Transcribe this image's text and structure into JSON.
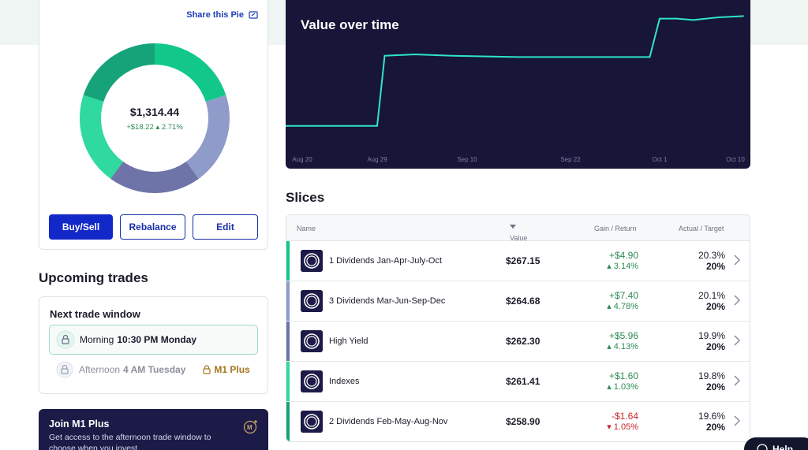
{
  "pie": {
    "share_label": "Share this Pie",
    "total_value": "$1,314.44",
    "change": "+$18.22 ▴ 2.71%",
    "buttons": {
      "buy_sell": "Buy/Sell",
      "rebalance": "Rebalance",
      "edit": "Edit"
    },
    "segment_colors": [
      "#11c88a",
      "#8f9bc8",
      "#6e73a8",
      "#2fd9a0",
      "#17a37a"
    ]
  },
  "upcoming": {
    "title": "Upcoming trades",
    "next_window_title": "Next trade window",
    "morning": {
      "label": "Morning",
      "time": "10:30 PM Monday"
    },
    "afternoon": {
      "label": "Afternoon",
      "time": "4 AM Tuesday",
      "badge": "M1 Plus"
    }
  },
  "join": {
    "title": "Join M1 Plus",
    "description": "Get access to the afternoon trade window to choose when you invest."
  },
  "chart": {
    "title": "Value over time",
    "line_color": "#2ee6c4",
    "background": "#171538"
  },
  "chart_data": {
    "type": "line",
    "title": "Value over time",
    "x_ticks": [
      "Aug 20",
      "Aug 29",
      "Sep 10",
      "Sep 22",
      "Oct 1",
      "Oct 10"
    ],
    "series": [
      {
        "values": [
          [
            "Aug 20",
            0.18
          ],
          [
            "Aug 29",
            0.18
          ],
          [
            "Aug 30",
            0.71
          ],
          [
            "Sep 3",
            0.72
          ],
          [
            "Sep 8",
            0.71
          ],
          [
            "Sep 16",
            0.7
          ],
          [
            "Sep 22",
            0.7
          ],
          [
            "Sep 30",
            0.7
          ],
          [
            "Oct 1",
            0.99
          ],
          [
            "Oct 3",
            0.99
          ],
          [
            "Oct 5",
            0.98
          ],
          [
            "Oct 8",
            1.0
          ],
          [
            "Oct 11",
            1.01
          ]
        ]
      }
    ],
    "grid": false
  },
  "slices": {
    "title": "Slices",
    "columns": {
      "name": "Name",
      "value": "Value",
      "gain": "Gain / Return",
      "target": "Actual / Target"
    },
    "rows": [
      {
        "name": "1 Dividends Jan-Apr-July-Oct",
        "value": "$267.15",
        "gain": "+$4.90",
        "ret": "▴ 3.14%",
        "actual": "20.3%",
        "target": "20%",
        "color": "#11c88a",
        "positive": true
      },
      {
        "name": "3 Dividends Mar-Jun-Sep-Dec",
        "value": "$264.68",
        "gain": "+$7.40",
        "ret": "▴ 4.78%",
        "actual": "20.1%",
        "target": "20%",
        "color": "#8f9bc8",
        "positive": true
      },
      {
        "name": "High Yield",
        "value": "$262.30",
        "gain": "+$5.96",
        "ret": "▴ 4.13%",
        "actual": "19.9%",
        "target": "20%",
        "color": "#6e73a8",
        "positive": true
      },
      {
        "name": "Indexes",
        "value": "$261.41",
        "gain": "+$1.60",
        "ret": "▴ 1.03%",
        "actual": "19.8%",
        "target": "20%",
        "color": "#2fd9a0",
        "positive": true
      },
      {
        "name": "2 Dividends Feb-May-Aug-Nov",
        "value": "$258.90",
        "gain": "-$1.64",
        "ret": "▾ 1.05%",
        "actual": "19.6%",
        "target": "20%",
        "color": "#17a37a",
        "positive": false
      }
    ]
  },
  "help": {
    "label": "Help"
  }
}
